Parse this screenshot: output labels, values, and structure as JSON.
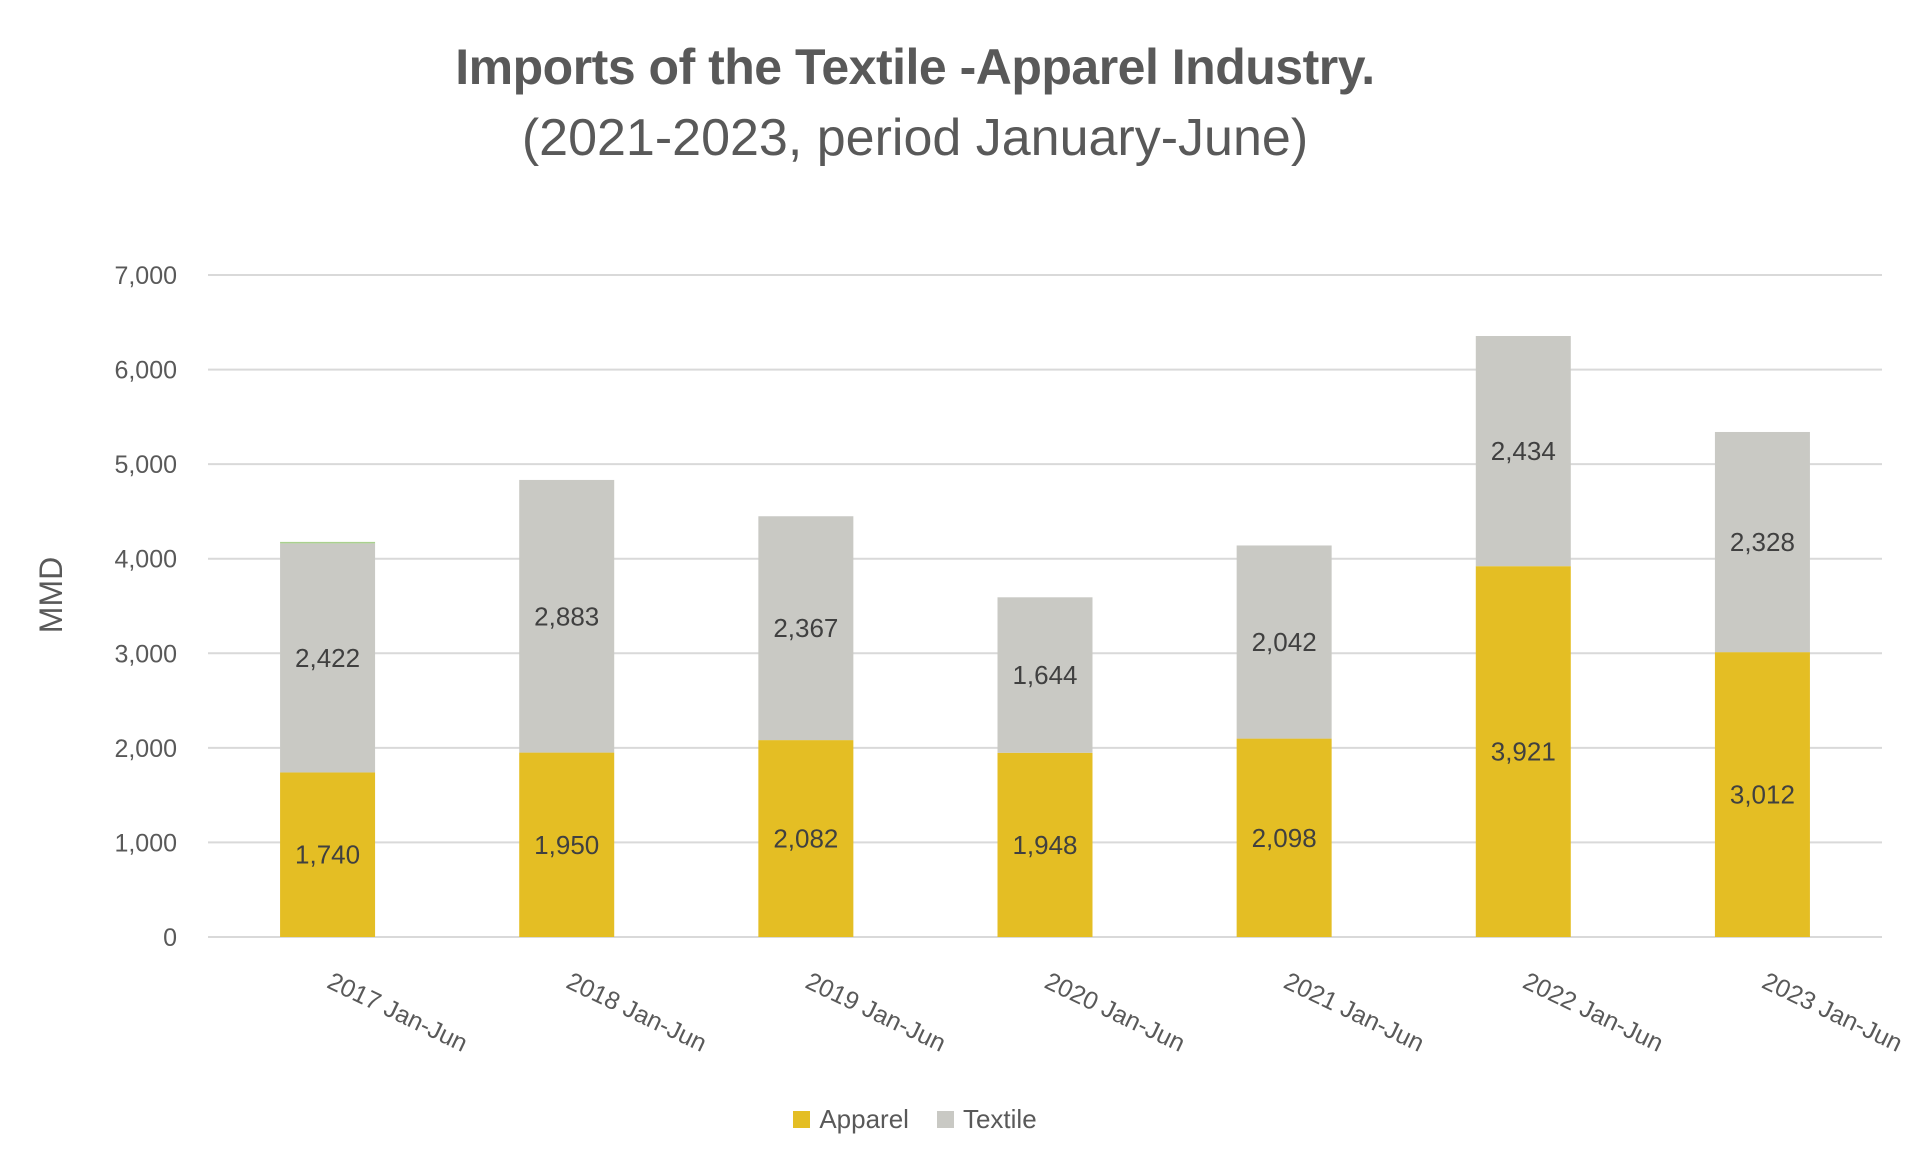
{
  "chart_data": {
    "type": "bar",
    "stacked": true,
    "title": "Imports of the Textile -Apparel Industry.",
    "subtitle": "(2021-2023,  period January-June)",
    "xlabel": "",
    "ylabel": "MMD",
    "ylim": [
      0,
      7000
    ],
    "yticks": [
      0,
      1000,
      2000,
      3000,
      4000,
      5000,
      6000,
      7000
    ],
    "ytick_labels": [
      "0",
      "1,000",
      "2,000",
      "3,000",
      "4,000",
      "5,000",
      "6,000",
      "7,000"
    ],
    "grid": true,
    "legend_position": "bottom",
    "categories": [
      "2017 Jan-Jun",
      "2018 Jan-Jun",
      "2019 Jan-Jun",
      "2020 Jan-Jun",
      "2021 Jan-Jun",
      "2022 Jan-Jun",
      "2023 Jan-Jun"
    ],
    "series": [
      {
        "name": "Apparel",
        "color": "#E4BE24",
        "values": [
          1740,
          1950,
          2082,
          1948,
          2098,
          3921,
          3012
        ],
        "labels": [
          "1,740",
          "1,950",
          "2,082",
          "1,948",
          "2,098",
          "3,921",
          "3,012"
        ]
      },
      {
        "name": "Textile",
        "color": "#C9C9C4",
        "values": [
          2422,
          2883,
          2367,
          1644,
          2042,
          2434,
          2328
        ],
        "labels": [
          "2,422",
          "2,883",
          "2,367",
          "1,644",
          "2,042",
          "2,434",
          "2,328"
        ]
      }
    ]
  },
  "colors": {
    "text": "#595959",
    "data_label": "#404040",
    "gridline": "#D9D9D9",
    "top_sliver": "#A9D18E"
  }
}
